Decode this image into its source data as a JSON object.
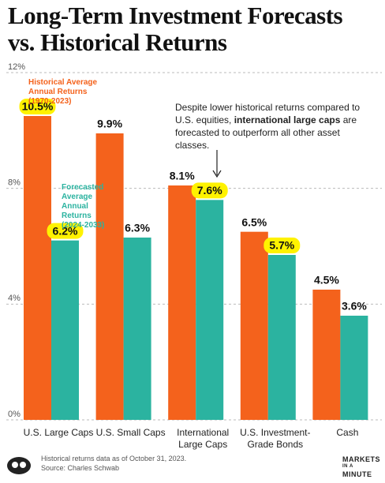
{
  "title": [
    "Long-Term Investment Forecasts",
    "vs. Historical Returns"
  ],
  "chart_data": {
    "type": "bar",
    "categories": [
      "U.S. Large Caps",
      "U.S. Small Caps",
      "International Large Caps",
      "U.S. Investment-Grade Bonds",
      "Cash"
    ],
    "series": [
      {
        "name": "Historical Average Annual Returns (1970-2023)",
        "color": "#f4621c",
        "values": [
          10.5,
          9.9,
          8.1,
          6.5,
          4.5
        ],
        "value_labels": [
          "10.5%",
          "9.9%",
          "8.1%",
          "6.5%",
          "4.5%"
        ],
        "highlighted": [
          true,
          false,
          false,
          false,
          false
        ]
      },
      {
        "name": "Forecasted Average Annual Returns (2024-2033)",
        "color": "#2bb3a0",
        "values": [
          6.2,
          6.3,
          7.6,
          5.7,
          3.6
        ],
        "value_labels": [
          "6.2%",
          "6.3%",
          "7.6%",
          "5.7%",
          "3.6%"
        ],
        "highlighted": [
          true,
          false,
          true,
          true,
          false
        ]
      }
    ],
    "highlight_color": "#fff200",
    "ylim": [
      0,
      12
    ],
    "yticks": [
      {
        "value": 0,
        "label": "0%"
      },
      {
        "value": 4,
        "label": "4%"
      },
      {
        "value": 8,
        "label": "8%"
      },
      {
        "value": 12,
        "label": "12%"
      }
    ],
    "grid": true,
    "annotation": [
      "Despite lower historical returns compared to U.S. equities, ",
      "international large caps",
      " are forecasted to outperform all other asset classes."
    ]
  },
  "footer": {
    "note": "Historical returns data as of October 31, 2023.",
    "source": "Source: Charles Schwab",
    "logo": [
      "MARKETS",
      "IN A",
      "MINUTE"
    ]
  }
}
